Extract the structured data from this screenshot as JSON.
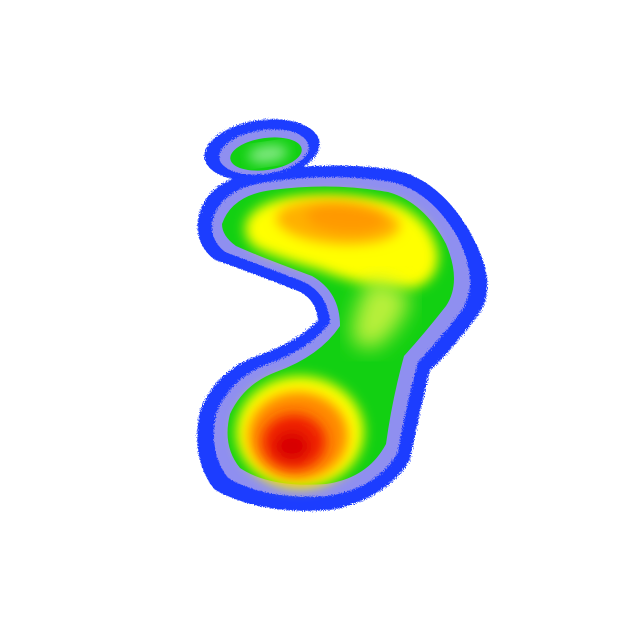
{
  "image": {
    "subject": "foot-pressure-heatmap",
    "background_color": "#ffffff",
    "colormap": [
      "#1a3cff",
      "#8f8ff0",
      "#12d012",
      "#ffff00",
      "#ff9900",
      "#e00000"
    ]
  }
}
